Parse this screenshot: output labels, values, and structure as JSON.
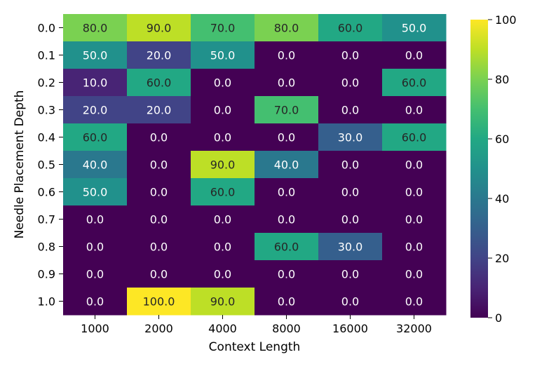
{
  "chart_data": {
    "type": "heatmap",
    "title": "",
    "xlabel": "Context Length",
    "ylabel": "Needle Placement Depth",
    "x_categories": [
      "1000",
      "2000",
      "4000",
      "8000",
      "16000",
      "32000"
    ],
    "y_categories": [
      "0.0",
      "0.1",
      "0.2",
      "0.3",
      "0.4",
      "0.5",
      "0.6",
      "0.7",
      "0.8",
      "0.9",
      "1.0"
    ],
    "values": [
      [
        80,
        90,
        70,
        80,
        60,
        50
      ],
      [
        50,
        20,
        50,
        0,
        0,
        0
      ],
      [
        10,
        60,
        0,
        0,
        0,
        60
      ],
      [
        20,
        20,
        0,
        70,
        0,
        0
      ],
      [
        60,
        0,
        0,
        0,
        30,
        60
      ],
      [
        40,
        0,
        90,
        40,
        0,
        0
      ],
      [
        50,
        0,
        60,
        0,
        0,
        0
      ],
      [
        0,
        0,
        0,
        0,
        0,
        0
      ],
      [
        0,
        0,
        0,
        60,
        30,
        0
      ],
      [
        0,
        0,
        0,
        0,
        0,
        0
      ],
      [
        0,
        100,
        90,
        0,
        0,
        0
      ]
    ],
    "value_format": "0.0",
    "colormap": "viridis",
    "vmin": 0,
    "vmax": 100,
    "colorbar_ticks": [
      "0",
      "20",
      "40",
      "60",
      "80",
      "100"
    ],
    "grid": false,
    "legend": "colorbar-right"
  }
}
